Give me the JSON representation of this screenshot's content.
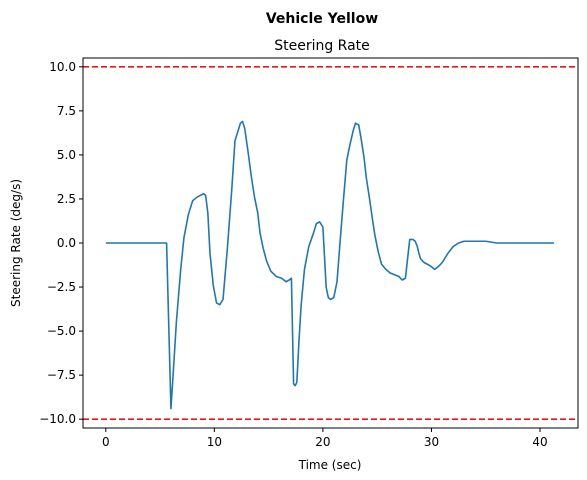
{
  "chart_data": {
    "type": "line",
    "suptitle": "Vehicle Yellow",
    "title": "Steering Rate",
    "xlabel": "Time (sec)",
    "ylabel": "Steering Rate (deg/s)",
    "xlim": [
      -2.1,
      43.5
    ],
    "ylim": [
      -10.5,
      10.5
    ],
    "xticks": [
      0,
      10,
      20,
      30,
      40
    ],
    "yticks": [
      -10.0,
      -7.5,
      -5.0,
      -2.5,
      0.0,
      2.5,
      5.0,
      7.5,
      10.0
    ],
    "xtick_labels": [
      "0",
      "10",
      "20",
      "30",
      "40"
    ],
    "ytick_labels": [
      "−10.0",
      "−7.5",
      "−5.0",
      "−2.5",
      "0.0",
      "2.5",
      "5.0",
      "7.5",
      "10.0"
    ],
    "grid": false,
    "colors": {
      "series": "#1f77b4",
      "limits": "#e31a1c"
    },
    "limit_lines": [
      {
        "y": 10.0,
        "style": "dashed"
      },
      {
        "y": -10.0,
        "style": "dashed"
      }
    ],
    "series": [
      {
        "x": [
          0,
          2,
          4,
          5.6,
          5.75,
          5.9,
          6.0,
          6.2,
          6.5,
          6.9,
          7.2,
          7.6,
          8.0,
          8.4,
          8.7,
          9.0,
          9.2,
          9.4,
          9.6,
          9.9,
          10.2,
          10.5,
          10.8,
          11.2,
          11.6,
          11.9,
          12.2,
          12.4,
          12.6,
          12.8,
          13.1,
          13.4,
          13.7,
          14.0,
          14.2,
          14.5,
          14.8,
          15.2,
          15.7,
          16.2,
          16.6,
          16.9,
          17.1,
          17.3,
          17.45,
          17.6,
          17.8,
          18.0,
          18.3,
          18.7,
          19.1,
          19.4,
          19.7,
          20.0,
          20.3,
          20.5,
          20.7,
          21.0,
          21.3,
          21.6,
          21.9,
          22.2,
          22.5,
          22.8,
          23.0,
          23.3,
          23.5,
          23.8,
          24.0,
          24.3,
          24.6,
          24.8,
          25.1,
          25.4,
          25.8,
          26.2,
          26.6,
          27.0,
          27.3,
          27.6,
          28.0,
          28.3,
          28.5,
          28.7,
          28.85,
          29.0,
          29.3,
          29.6,
          29.9,
          30.3,
          30.7,
          31.0,
          31.5,
          32.0,
          32.5,
          33.0,
          33.5,
          34.0,
          35.0,
          36.0,
          38.0,
          40.0,
          41.3
        ],
        "y": [
          0.0,
          0.0,
          0.0,
          0.0,
          -3.5,
          -7.0,
          -9.4,
          -7.5,
          -4.5,
          -1.5,
          0.3,
          1.6,
          2.4,
          2.6,
          2.7,
          2.8,
          2.7,
          1.7,
          -0.6,
          -2.4,
          -3.4,
          -3.5,
          -3.2,
          -0.3,
          3.0,
          5.8,
          6.4,
          6.8,
          6.9,
          6.5,
          5.2,
          3.8,
          2.6,
          1.7,
          0.6,
          -0.3,
          -1.0,
          -1.6,
          -1.9,
          -2.0,
          -2.2,
          -2.1,
          -2.0,
          -8.0,
          -8.1,
          -7.9,
          -5.5,
          -3.5,
          -1.5,
          -0.2,
          0.5,
          1.1,
          1.2,
          0.9,
          -2.5,
          -3.1,
          -3.2,
          -3.1,
          -2.2,
          0.2,
          2.5,
          4.7,
          5.6,
          6.4,
          6.8,
          6.7,
          6.0,
          4.8,
          3.7,
          2.5,
          1.2,
          0.4,
          -0.5,
          -1.2,
          -1.5,
          -1.7,
          -1.8,
          -1.9,
          -2.1,
          -2.0,
          0.2,
          0.2,
          0.1,
          -0.2,
          -0.6,
          -0.9,
          -1.1,
          -1.2,
          -1.3,
          -1.5,
          -1.3,
          -1.1,
          -0.6,
          -0.2,
          0.0,
          0.1,
          0.1,
          0.1,
          0.1,
          0.0,
          0.0,
          0.0,
          0.0
        ]
      }
    ]
  }
}
